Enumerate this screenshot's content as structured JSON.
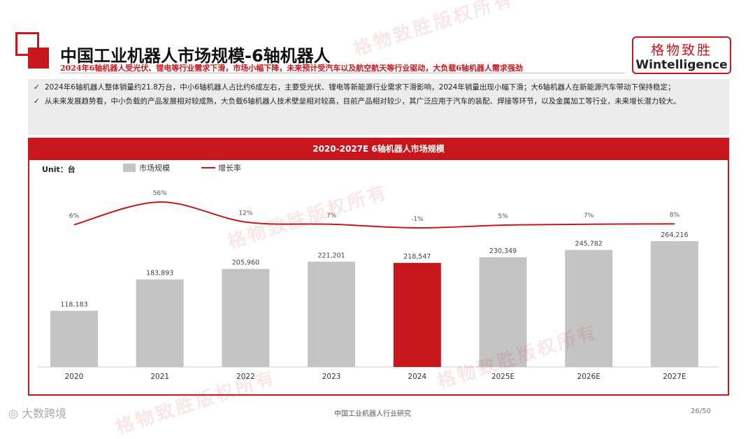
{
  "header": {
    "title": "中国工业机器人市场规模-6轴机器人",
    "subtitle": "2024年6轴机器人受光伏、锂电等行业需求下滑，市场小幅下降，未来预计受汽车以及航空航天等行业驱动，大负载6轴机器人需求强劲"
  },
  "logo": {
    "cn": "格物致胜",
    "en": "Wintelligence"
  },
  "bullets": [
    "2024年6轴机器人整体销量约21.8万台，中小6轴机器人占比约6成左右，主要受光伏、锂电等新能源行业需求下滑影响，2024年销量出现小幅下滑；大6轴机器人在新能源汽车带动下保持稳定；",
    "从未来发展趋势看，中小负载的产品发展相对较成熟，大负载6轴机器人技术壁垒相对较高，目前产品相对较少，其广泛应用于汽车的装配、焊接等环节，以及金属加工等行业，未来增长潜力较大。"
  ],
  "bullet_mark": "✓",
  "watermark_text": "格物致胜版权所有",
  "chart_data": {
    "type": "bar",
    "title": "2020-2027E 6轴机器人市场规模",
    "unit_label": "Unit：台",
    "categories": [
      "2020",
      "2021",
      "2022",
      "2023",
      "2024",
      "2025E",
      "2026E",
      "2027E"
    ],
    "series": [
      {
        "name": "市场规模",
        "type": "bar",
        "values": [
          118183,
          183893,
          205960,
          221201,
          218547,
          230349,
          245782,
          264216
        ]
      },
      {
        "name": "增长率",
        "type": "line",
        "values": [
          6,
          56,
          12,
          7,
          -1,
          5,
          7,
          8
        ]
      }
    ],
    "value_labels": [
      "118,183",
      "183,893",
      "205,960",
      "221,201",
      "218,547",
      "230,349",
      "245,782",
      "264,216"
    ],
    "rate_labels": [
      "6%",
      "56%",
      "12%",
      "7%",
      "-1%",
      "5%",
      "7%",
      "8%"
    ],
    "highlight_index": 4,
    "legend_position": "top-left",
    "grid": false,
    "colors": {
      "bar": "#c4c4c4",
      "highlight": "#c8161d",
      "line": "#c8161d"
    }
  },
  "footer": {
    "brand": "大数跨境",
    "center": "中国工业机器人行业研究",
    "page": "26/50"
  }
}
